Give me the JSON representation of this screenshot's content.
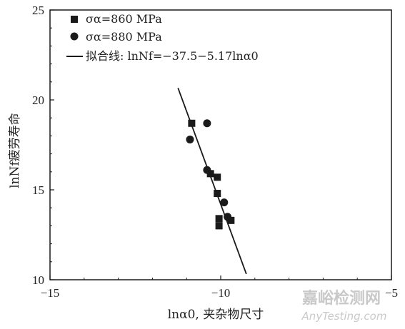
{
  "chart_data": {
    "type": "scatter",
    "title": "",
    "xlabel": "lnα0, 夹杂物尺寸",
    "ylabel": "lnNf疲劳寿命",
    "xlim": [
      -15,
      -5
    ],
    "ylim": [
      10,
      25
    ],
    "x_ticks": [
      "−15",
      "−10",
      "−5"
    ],
    "y_ticks": [
      "10",
      "15",
      "20",
      "25"
    ],
    "grid": false,
    "legend_position": "top-left",
    "series": [
      {
        "name": "σα=860 MPa",
        "marker": "square",
        "points": [
          {
            "x": -10.85,
            "y": 18.7
          },
          {
            "x": -10.3,
            "y": 15.9
          },
          {
            "x": -10.1,
            "y": 15.7
          },
          {
            "x": -10.1,
            "y": 14.8
          },
          {
            "x": -10.05,
            "y": 13.4
          },
          {
            "x": -10.05,
            "y": 13.0
          },
          {
            "x": -9.7,
            "y": 13.3
          }
        ]
      },
      {
        "name": "σα=880 MPa",
        "marker": "circle",
        "points": [
          {
            "x": -10.9,
            "y": 17.8
          },
          {
            "x": -10.4,
            "y": 18.7
          },
          {
            "x": -10.4,
            "y": 16.1
          },
          {
            "x": -9.9,
            "y": 14.3
          },
          {
            "x": -9.8,
            "y": 13.5
          }
        ]
      },
      {
        "name": "拟合线",
        "marker": "line",
        "equation": ": lnNf=−37.5−5.17lnα0",
        "x_range": [
          -11.25,
          -9.25
        ]
      }
    ]
  },
  "watermark": {
    "main": "嘉峪检测网",
    "sub": "AnyTesting.com"
  },
  "colors": {
    "ink": "#1a1a1a",
    "watermark": "#c9c9c9"
  }
}
